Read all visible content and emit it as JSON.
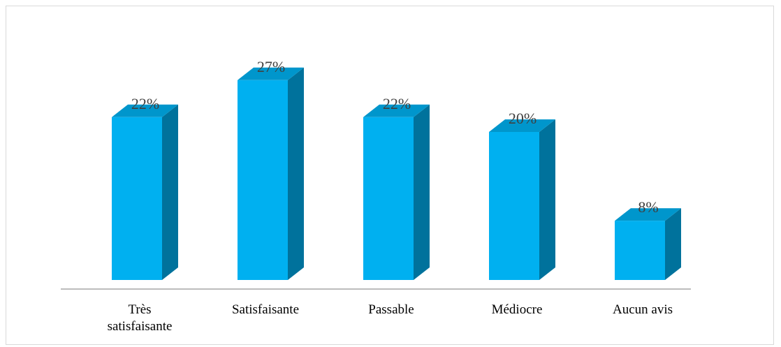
{
  "chart_data": {
    "type": "bar",
    "style": "3d-column",
    "categories": [
      [
        "Très",
        "satisfaisante"
      ],
      [
        "Satisfaisante"
      ],
      [
        "Passable"
      ],
      [
        "Médiocre"
      ],
      [
        "Aucun avis"
      ]
    ],
    "values": [
      22,
      27,
      22,
      20,
      8
    ],
    "data_labels": [
      "22%",
      "27%",
      "22%",
      "20%",
      "8%"
    ],
    "ylim": [
      0,
      30
    ],
    "grid": false,
    "legend": "none",
    "colors": {
      "front": "#00b0f0",
      "side": "#00729c",
      "top": "#0096cc",
      "axis": "#a6a6a6",
      "frame": "#d9d9d9"
    }
  }
}
